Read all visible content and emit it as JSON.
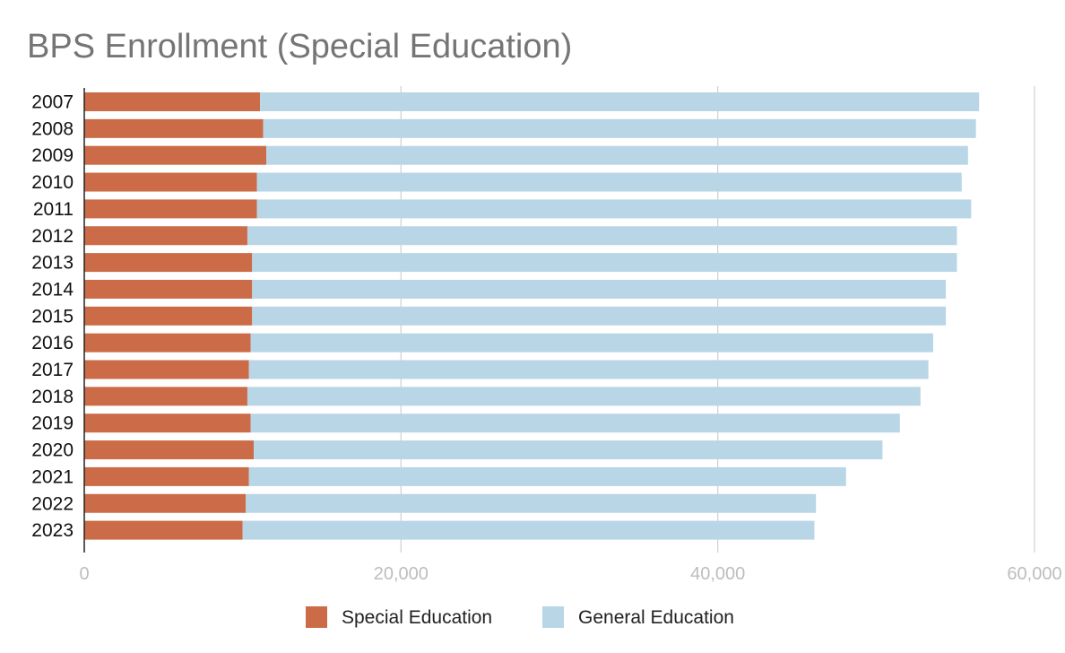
{
  "chart_data": {
    "type": "bar",
    "orientation": "horizontal",
    "stacked": true,
    "title": "BPS Enrollment (Special Education)",
    "xlabel": "",
    "ylabel": "",
    "xlim": [
      0,
      60000
    ],
    "xticks": [
      0,
      20000,
      40000,
      60000
    ],
    "xtick_labels": [
      "0",
      "20,000",
      "40,000",
      "60,000"
    ],
    "grid": true,
    "legend_position": "bottom",
    "categories": [
      "2007",
      "2008",
      "2009",
      "2010",
      "2011",
      "2012",
      "2013",
      "2014",
      "2015",
      "2016",
      "2017",
      "2018",
      "2019",
      "2020",
      "2021",
      "2022",
      "2023"
    ],
    "series": [
      {
        "name": "Special Education",
        "color": "#cc6b47",
        "values": [
          11100,
          11300,
          11500,
          10900,
          10900,
          10300,
          10600,
          10600,
          10600,
          10500,
          10400,
          10300,
          10500,
          10700,
          10400,
          10200,
          10000
        ]
      },
      {
        "name": "General Education",
        "color": "#b9d6e6",
        "values": [
          45400,
          45000,
          44300,
          44500,
          45100,
          44800,
          44500,
          43800,
          43800,
          43100,
          42900,
          42500,
          41000,
          39700,
          37700,
          36000,
          36100
        ]
      }
    ]
  }
}
